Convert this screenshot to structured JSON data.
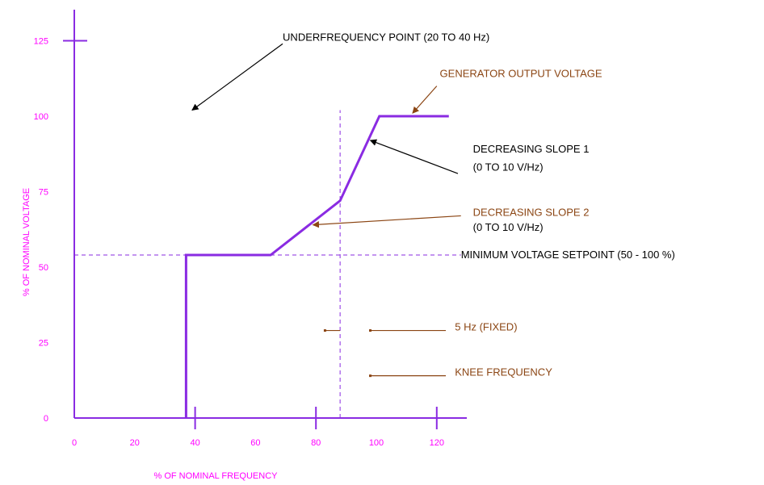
{
  "chart_data": {
    "type": "line",
    "xlabel": "% OF NOMINAL FREQUENCY",
    "ylabel": "% OF NOMINAL VOLTAGE",
    "xlim": [
      0,
      130
    ],
    "ylim": [
      0,
      125
    ],
    "xticks": [
      {
        "value": 0,
        "label": "0"
      },
      {
        "value": 20,
        "label": "20"
      },
      {
        "value": 40,
        "label": "40"
      },
      {
        "value": 60,
        "label": "60"
      },
      {
        "value": 80,
        "label": "80"
      },
      {
        "value": 100,
        "label": "100"
      },
      {
        "value": 120,
        "label": "120"
      }
    ],
    "yticks": [
      {
        "value": 0,
        "label": "0"
      },
      {
        "value": 25,
        "label": "25"
      },
      {
        "value": 50,
        "label": "50"
      },
      {
        "value": 75,
        "label": "75"
      },
      {
        "value": 100,
        "label": "100"
      },
      {
        "value": 125,
        "label": "125"
      }
    ],
    "tick_marks_x": [
      40,
      80,
      120
    ],
    "tick_marks_y": [
      125
    ],
    "series": [
      {
        "x": [
          37,
          37,
          65,
          88,
          101,
          124
        ],
        "y": [
          0,
          54,
          54,
          72,
          100,
          100
        ],
        "color": "#8a2be2"
      }
    ],
    "reference_lines": [
      {
        "orientation": "horizontal",
        "value": 54,
        "from": 0,
        "to": 128,
        "color": "#8a2be2",
        "style": "dashed"
      },
      {
        "orientation": "vertical",
        "value": 88,
        "from": 0,
        "to": 102,
        "color": "#8a2be2",
        "style": "dashed"
      }
    ],
    "annotations": [
      {
        "text": "UNDERFREQUENCY POINT (20 TO 40 Hz)",
        "color": "#000000",
        "text_at": [
          69,
          125
        ],
        "arrow_from": [
          69,
          124
        ],
        "arrow_to": [
          39,
          102
        ],
        "anchor": "start"
      },
      {
        "text": "GENERATOR OUTPUT VOLTAGE",
        "color": "#8b4513",
        "text_at": [
          121,
          113
        ],
        "arrow_from": [
          120,
          110
        ],
        "arrow_to": [
          112,
          101
        ],
        "anchor": "start"
      },
      {
        "text": "DECREASING SLOPE 1",
        "color": "#000000",
        "text_at": [
          132,
          88
        ],
        "arrow_from": [
          127,
          81
        ],
        "arrow_to": [
          98,
          92
        ],
        "anchor": "start"
      },
      {
        "text": "(0 TO 10 V/Hz)",
        "color": "#000000",
        "text_at": [
          132,
          82
        ],
        "anchor": "start"
      },
      {
        "text": "DECREASING SLOPE 2",
        "color": "#8b4513",
        "text_at": [
          132,
          67
        ],
        "arrow_from": [
          128,
          67
        ],
        "arrow_to": [
          79,
          64
        ],
        "anchor": "start"
      },
      {
        "text": "(0 TO 10 V/Hz)",
        "color": "#000000",
        "text_at": [
          132,
          62
        ],
        "anchor": "start"
      },
      {
        "text": "MINIMUM VOLTAGE SETPOINT (50 - 100 %)",
        "color": "#000000",
        "text_at": [
          128,
          53
        ],
        "anchor": "start"
      },
      {
        "text": "5 Hz (FIXED)",
        "color": "#8b4513",
        "text_at": [
          126,
          29
        ],
        "anchor": "start"
      },
      {
        "text": "KNEE FREQUENCY",
        "color": "#8b4513",
        "text_at": [
          126,
          14
        ],
        "anchor": "start"
      }
    ],
    "dimension_marks": [
      {
        "y": 29,
        "from": 83,
        "to": 88,
        "color": "#8b4513"
      },
      {
        "y": 29,
        "from": 98,
        "to": 123,
        "color": "#8b4513"
      },
      {
        "y": 14,
        "from": 98,
        "to": 123,
        "color": "#8b4513"
      }
    ]
  }
}
